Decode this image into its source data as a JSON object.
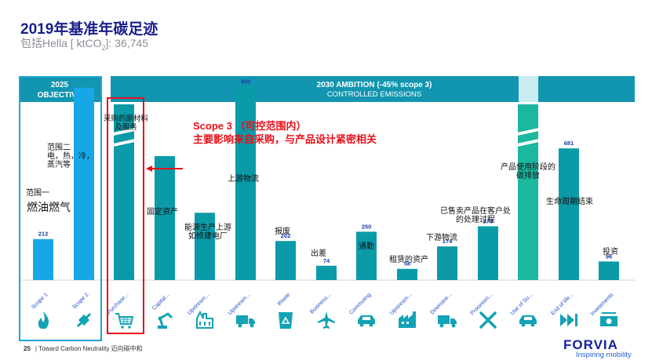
{
  "header": {
    "title": "2019年基准年碳足迹",
    "subtitle_prefix": "包括Hella [ ktCO",
    "subtitle_sub": "2",
    "subtitle_suffix": "]: 36,745"
  },
  "banners": {
    "objective_line1": "2025",
    "objective_line2": "OBJECTIVE",
    "ambition_line1": "2030 AMBITION (-45% scope 3)",
    "ambition_line2": "CONTROLLED EMISSIONS"
  },
  "annotation": {
    "line1": "Scope 3 （可控范围内）",
    "line2": "主要影响来自采购，与产品设计紧密相关"
  },
  "notes": {
    "scope2": "范围二\n电，热，冷，\n蒸汽等",
    "scope1_a": "范围一",
    "scope1_b": "燃油燃气",
    "purchased": "采购的原材料\n及服务",
    "capital": "固定资产",
    "upstream_energy": "能源生产上游\n如修建电厂",
    "upstream_transport": "上游物流",
    "waste": "报废",
    "business": "出差",
    "commuting": "通勤",
    "leased": "租赁的资产",
    "downstream": "下游物流",
    "processing": "已售卖产品在客户处\n的处理过程",
    "use": "产品使用阶段的\n碳排放",
    "eol": "生命周期结束",
    "investments": "投资"
  },
  "footer": {
    "page": "25",
    "text": "Toward Carbon Neutrality 迈向碳中和",
    "brand": "FORVIA",
    "tagline": "Inspiring mobility"
  },
  "colors": {
    "scope12": "#18a7e6",
    "scope3": "#0b9aa8",
    "banner_dark": "#1295b0",
    "banner_light": "#c9ecf0",
    "highlight": "#e8101a",
    "use_phase": "#1bb79f"
  },
  "chart_data": {
    "type": "bar",
    "categories": [
      "Scope 1",
      "Scope 2",
      "Purchase...",
      "Capital...",
      "Upstream...",
      "Upstream...",
      "Waste",
      "Business...",
      "Commuting",
      "Upstream...",
      "Downstre...",
      "Processin...",
      "Use of So...",
      "End of life...",
      "Investments"
    ],
    "values": [
      212,
      null,
      null,
      null,
      null,
      350,
      202,
      74,
      250,
      58,
      174,
      278,
      null,
      681,
      96
    ],
    "value_labels": [
      "212",
      "",
      "",
      "",
      "",
      "350",
      "202",
      "74",
      "250",
      "58",
      "174",
      "278",
      "",
      "681",
      "96"
    ],
    "bar_heights_relative": [
      212,
      995,
      null,
      641,
      348,
      1000,
      202,
      74,
      250,
      58,
      174,
      278,
      null,
      681,
      96
    ],
    "broken_axis_categories": [
      "Purchase...",
      "Use of So..."
    ],
    "icons": [
      "flame-icon",
      "plug-icon",
      "cart-icon",
      "robot-arm-icon",
      "factory-icon",
      "truck-icon",
      "recycle-icon",
      "plane-icon",
      "car-icon",
      "building-icon",
      "truck-icon",
      "tools-icon",
      "car-icon",
      "fast-forward-icon",
      "money-icon"
    ]
  }
}
